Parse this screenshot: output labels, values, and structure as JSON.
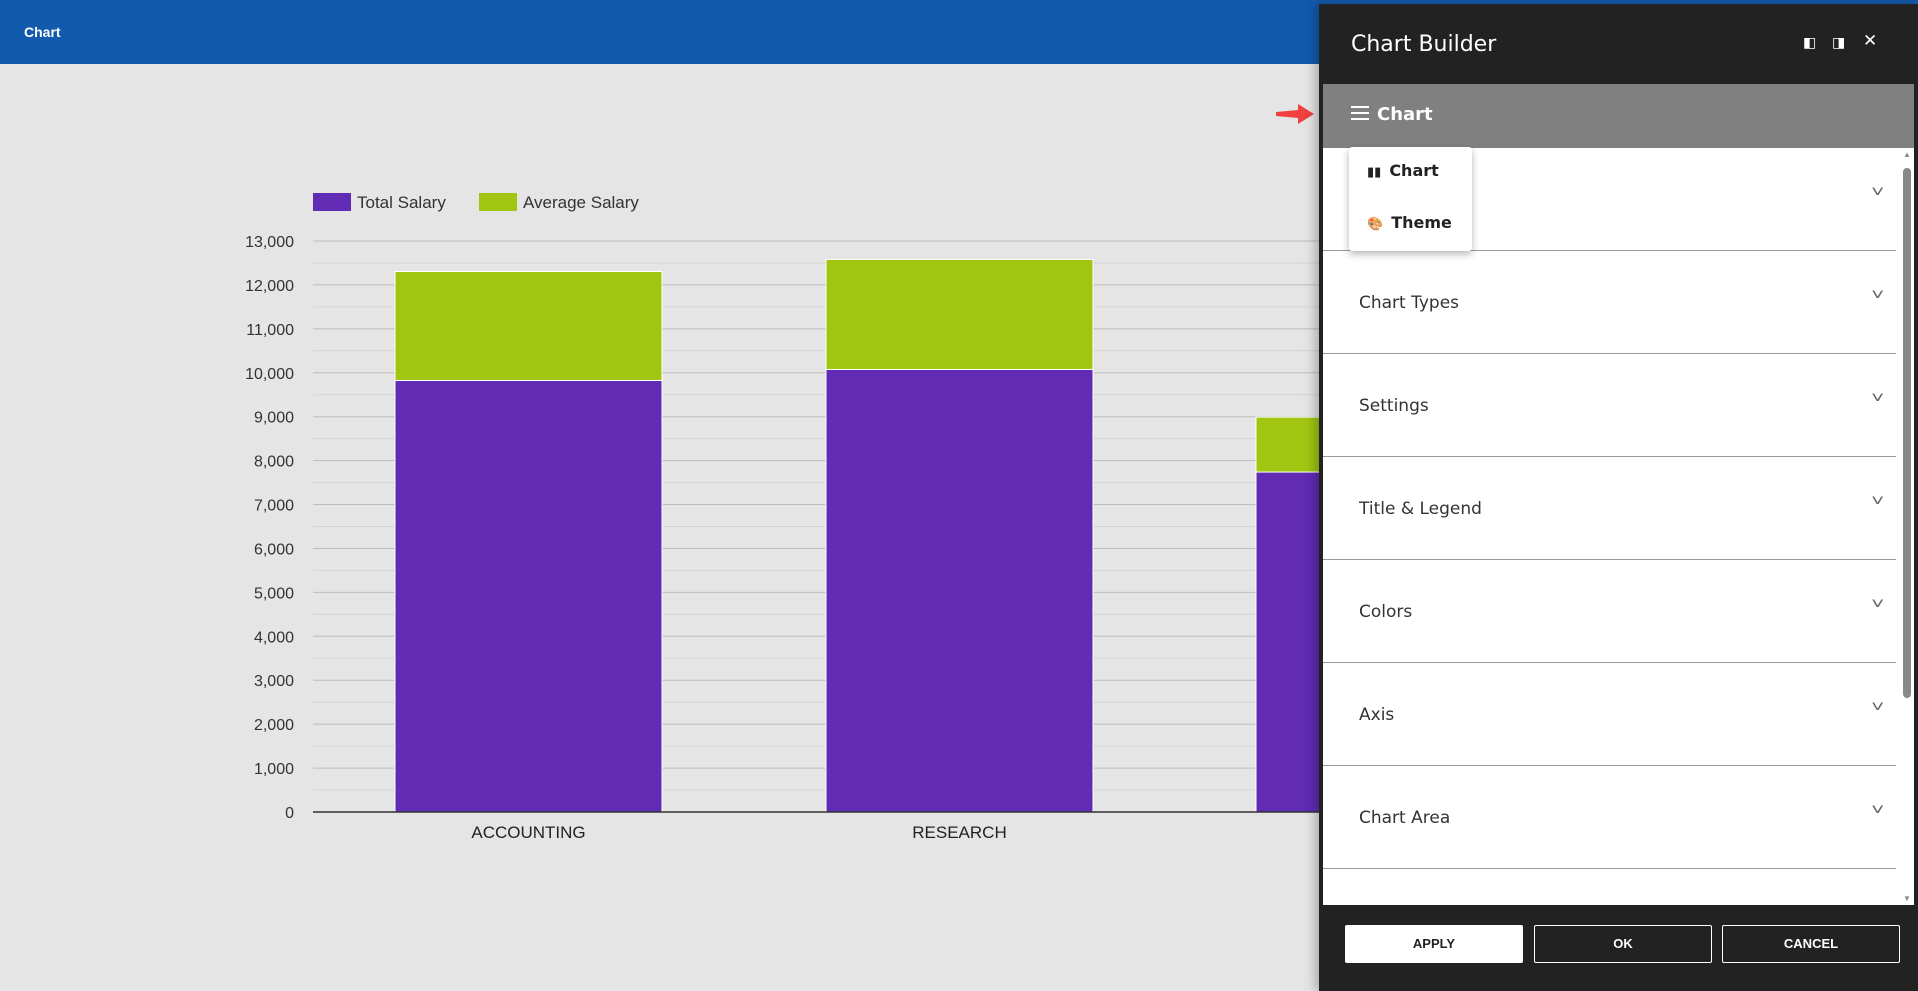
{
  "header": {
    "title": "Chart"
  },
  "chart_data": {
    "type": "bar",
    "stacked": true,
    "categories": [
      "ACCOUNTING",
      "RESEARCH",
      ""
    ],
    "series": [
      {
        "name": "Total Salary",
        "color": "#612bb4",
        "values": [
          9825,
          10075,
          7740
        ]
      },
      {
        "name": "Average Salary",
        "color": "#a1c511",
        "values": [
          2480,
          2505,
          1250
        ]
      }
    ],
    "ylim": [
      0,
      13000
    ],
    "yticks": [
      "0",
      "1,000",
      "2,000",
      "3,000",
      "4,000",
      "5,000",
      "6,000",
      "7,000",
      "8,000",
      "9,000",
      "10,000",
      "11,000",
      "12,000",
      "13,000"
    ],
    "grid": true,
    "legend": "top-left"
  },
  "panel": {
    "title": "Chart Builder",
    "menu_label": "Chart",
    "menu_items": [
      {
        "label": "Chart",
        "icon": "bar-chart-icon"
      },
      {
        "label": "Theme",
        "icon": "palette-icon"
      }
    ],
    "sections": [
      "",
      "Chart Types",
      "Settings",
      "Title & Legend",
      "Colors",
      "Axis",
      "Chart Area",
      ""
    ],
    "buttons": {
      "apply": "APPLY",
      "ok": "OK",
      "cancel": "CANCEL"
    }
  }
}
